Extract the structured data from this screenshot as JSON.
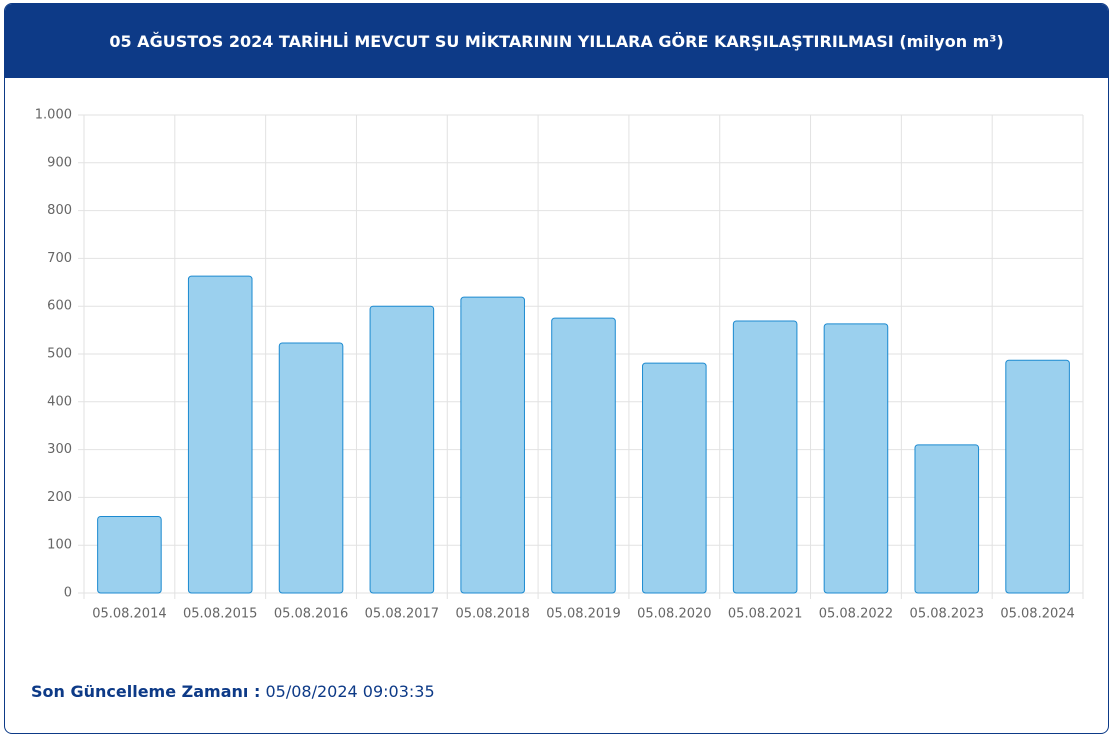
{
  "chart_data": {
    "type": "bar",
    "title": "05 AĞUSTOS 2024 TARİHLİ MEVCUT SU MİKTARININ YILLARA GÖRE KARŞILAŞTIRILMASI (milyon m³)",
    "categories": [
      "05.08.2014",
      "05.08.2015",
      "05.08.2016",
      "05.08.2017",
      "05.08.2018",
      "05.08.2019",
      "05.08.2020",
      "05.08.2021",
      "05.08.2022",
      "05.08.2023",
      "05.08.2024"
    ],
    "values": [
      160,
      663,
      523,
      600,
      619,
      575,
      481,
      569,
      563,
      310,
      487
    ],
    "color": "#9bd0ee",
    "ylim": [
      0,
      1000
    ],
    "yticks": [
      0,
      100,
      200,
      300,
      400,
      500,
      600,
      700,
      800,
      900,
      {
        "value": 1000,
        "label": "1.000"
      }
    ],
    "grid": true
  },
  "footer": {
    "label": "Son Güncelleme Zamanı :",
    "value": "05/08/2024 09:03:35"
  }
}
